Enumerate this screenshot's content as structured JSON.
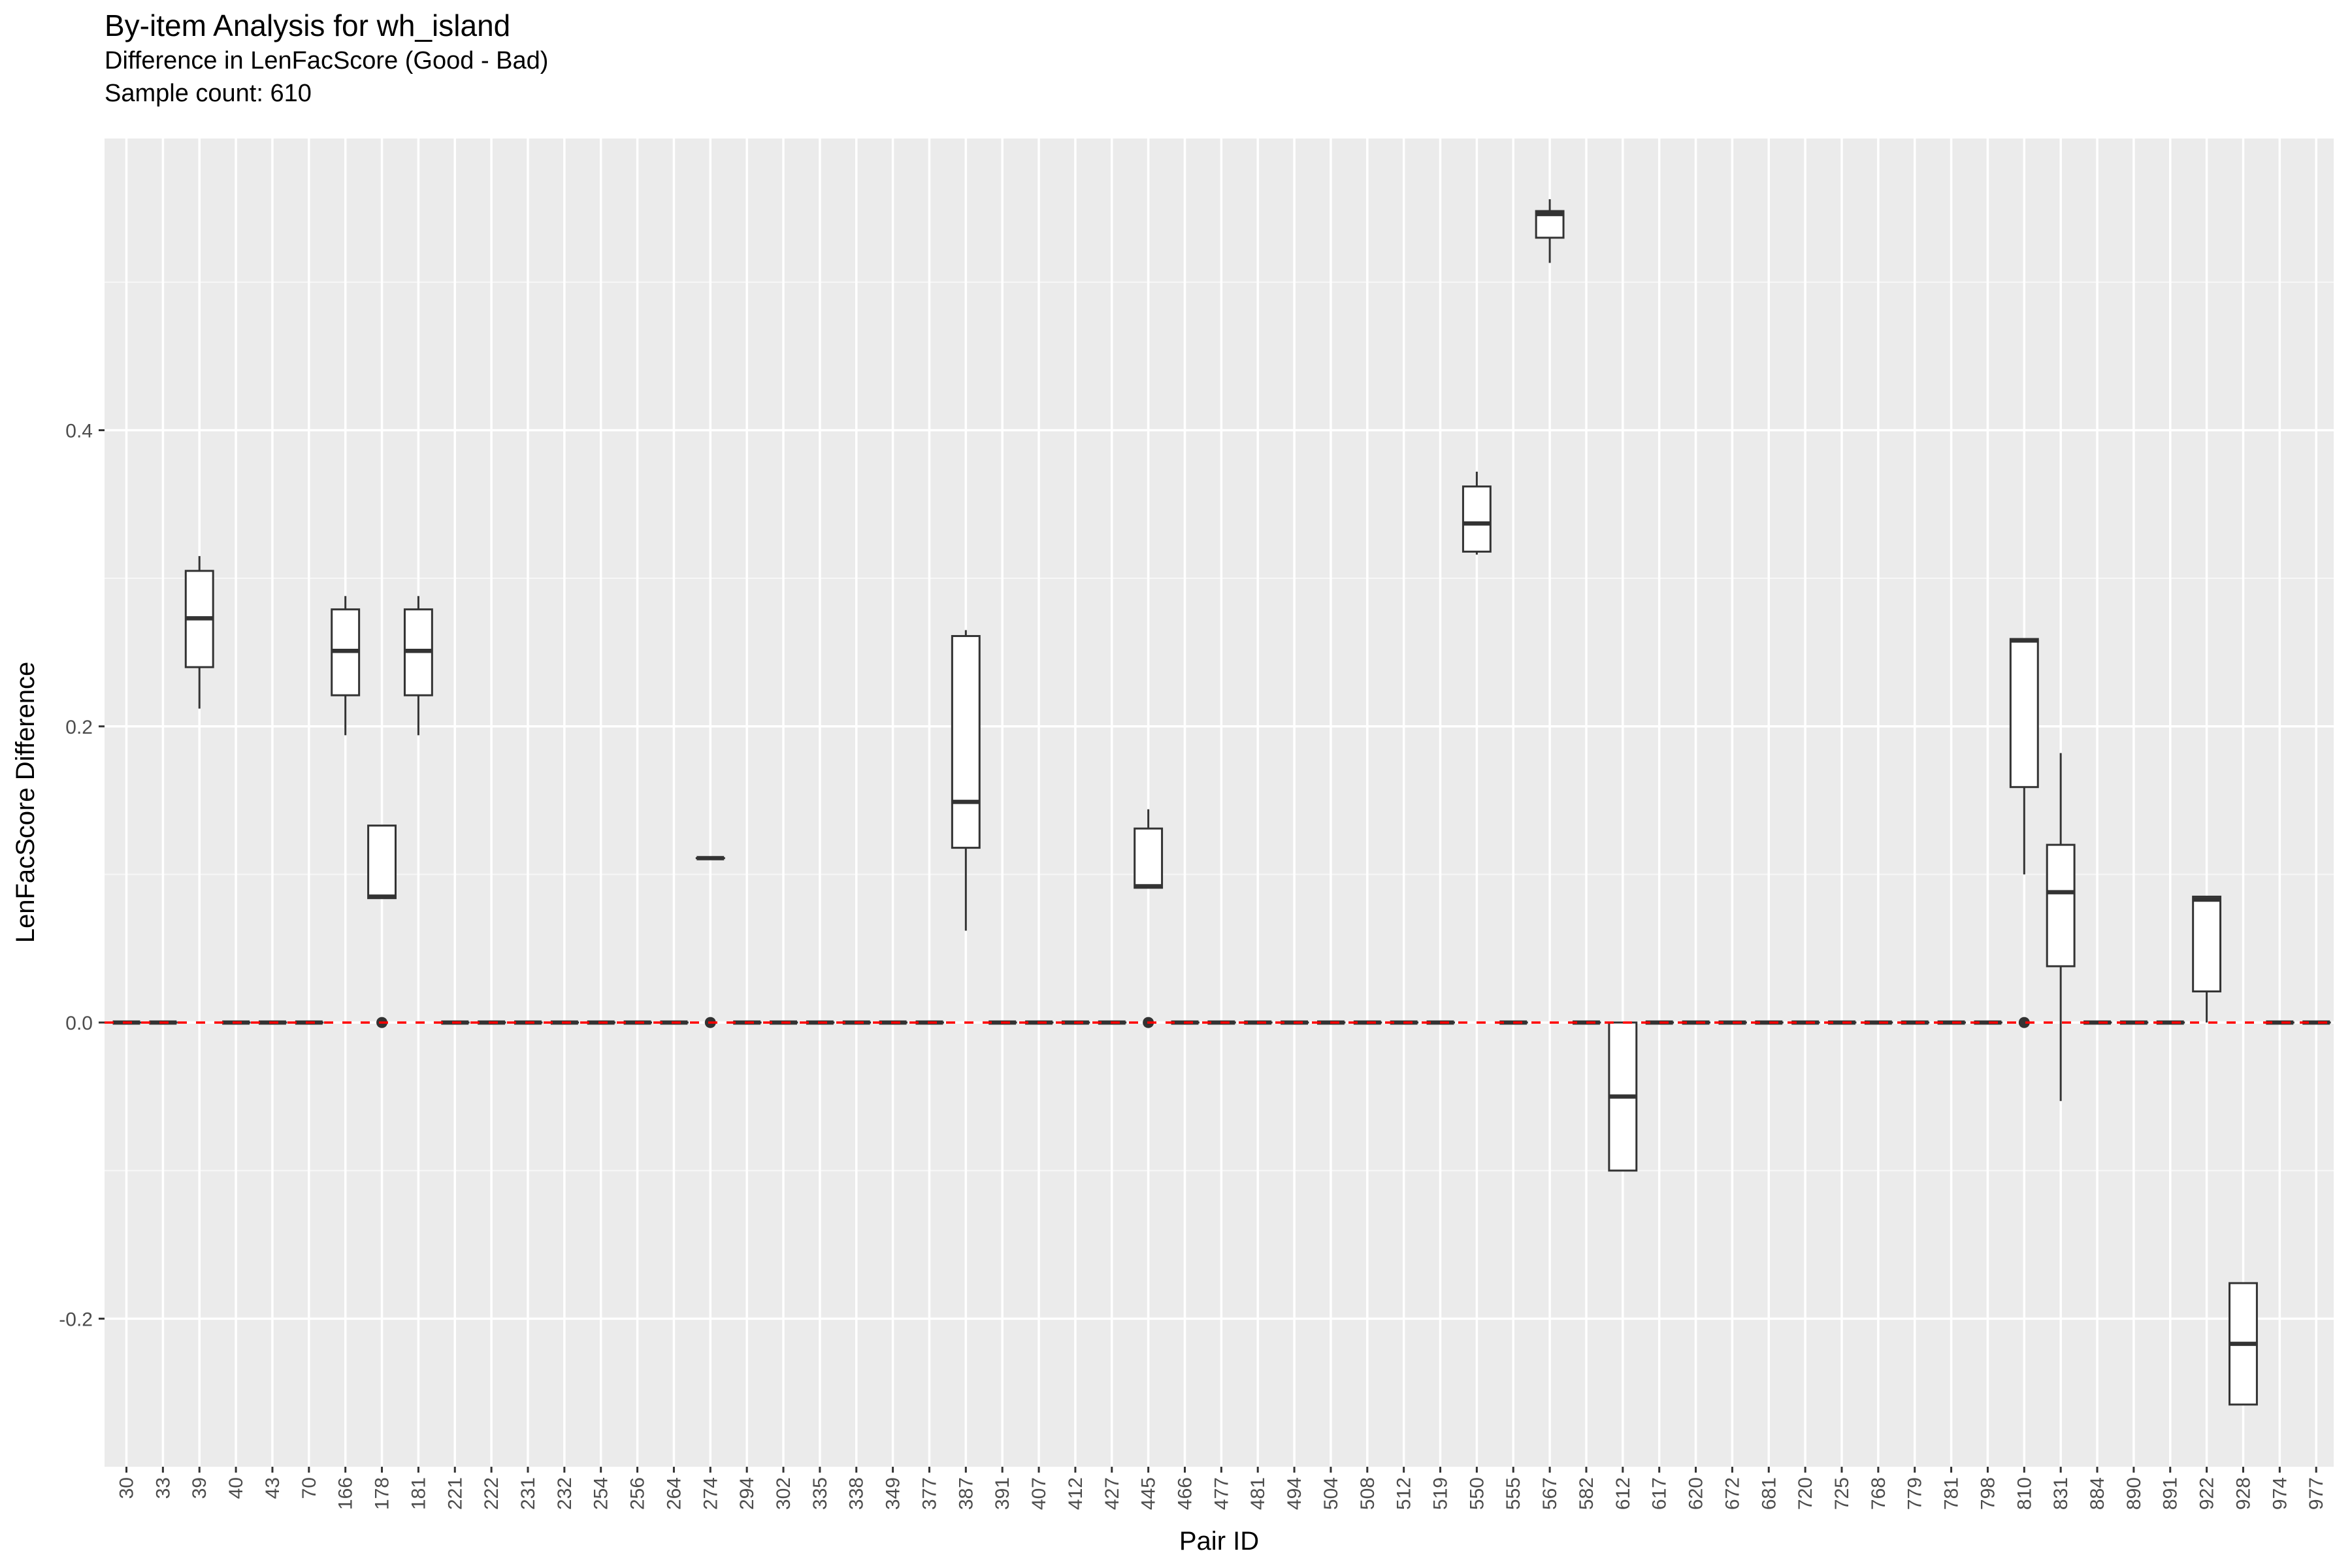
{
  "chart_data": {
    "type": "boxplot",
    "title": "By-item Analysis for wh_island",
    "subtitle": "Difference in LenFacScore (Good - Bad)",
    "caption": "Sample count: 610",
    "xlabel": "Pair ID",
    "ylabel": "LenFacScore Difference",
    "ylim": [
      -0.3,
      0.597
    ],
    "yticks": [
      -0.2,
      0.0,
      0.2,
      0.4
    ],
    "ytick_labels": [
      "-0.2",
      "0.0",
      "0.2",
      "0.4"
    ],
    "reference_line": {
      "y": 0.0,
      "color": "#ff0000",
      "style": "dashed"
    },
    "categories": [
      "30",
      "33",
      "39",
      "40",
      "43",
      "70",
      "166",
      "178",
      "181",
      "221",
      "222",
      "231",
      "232",
      "254",
      "256",
      "264",
      "274",
      "294",
      "302",
      "335",
      "338",
      "349",
      "377",
      "387",
      "391",
      "407",
      "412",
      "427",
      "445",
      "466",
      "477",
      "481",
      "494",
      "504",
      "508",
      "512",
      "519",
      "550",
      "555",
      "567",
      "582",
      "612",
      "617",
      "620",
      "672",
      "681",
      "720",
      "725",
      "768",
      "779",
      "781",
      "798",
      "810",
      "831",
      "884",
      "890",
      "891",
      "922",
      "928",
      "974",
      "977"
    ],
    "boxes": [
      {
        "id": "30",
        "min": 0,
        "q1": 0,
        "median": 0,
        "q3": 0,
        "max": 0,
        "outliers": []
      },
      {
        "id": "33",
        "min": 0,
        "q1": 0,
        "median": 0,
        "q3": 0,
        "max": 0,
        "outliers": []
      },
      {
        "id": "39",
        "min": 0.212,
        "q1": 0.24,
        "median": 0.273,
        "q3": 0.305,
        "max": 0.315,
        "outliers": []
      },
      {
        "id": "40",
        "min": 0,
        "q1": 0,
        "median": 0,
        "q3": 0,
        "max": 0,
        "outliers": []
      },
      {
        "id": "43",
        "min": 0,
        "q1": 0,
        "median": 0,
        "q3": 0,
        "max": 0,
        "outliers": []
      },
      {
        "id": "70",
        "min": 0,
        "q1": 0,
        "median": 0,
        "q3": 0,
        "max": 0,
        "outliers": []
      },
      {
        "id": "166",
        "min": 0.194,
        "q1": 0.221,
        "median": 0.251,
        "q3": 0.279,
        "max": 0.288,
        "outliers": []
      },
      {
        "id": "178",
        "min": 0.084,
        "q1": 0.084,
        "median": 0.085,
        "q3": 0.133,
        "max": 0.133,
        "outliers": [
          0
        ]
      },
      {
        "id": "181",
        "min": 0.194,
        "q1": 0.221,
        "median": 0.251,
        "q3": 0.279,
        "max": 0.288,
        "outliers": []
      },
      {
        "id": "221",
        "min": 0,
        "q1": 0,
        "median": 0,
        "q3": 0,
        "max": 0,
        "outliers": []
      },
      {
        "id": "222",
        "min": 0,
        "q1": 0,
        "median": 0,
        "q3": 0,
        "max": 0,
        "outliers": []
      },
      {
        "id": "231",
        "min": 0,
        "q1": 0,
        "median": 0,
        "q3": 0,
        "max": 0,
        "outliers": []
      },
      {
        "id": "232",
        "min": 0,
        "q1": 0,
        "median": 0,
        "q3": 0,
        "max": 0,
        "outliers": []
      },
      {
        "id": "254",
        "min": 0,
        "q1": 0,
        "median": 0,
        "q3": 0,
        "max": 0,
        "outliers": []
      },
      {
        "id": "256",
        "min": 0,
        "q1": 0,
        "median": 0,
        "q3": 0,
        "max": 0,
        "outliers": []
      },
      {
        "id": "264",
        "min": 0,
        "q1": 0,
        "median": 0,
        "q3": 0,
        "max": 0,
        "outliers": []
      },
      {
        "id": "274",
        "min": 0.111,
        "q1": 0.111,
        "median": 0.111,
        "q3": 0.111,
        "max": 0.111,
        "outliers": [
          0
        ]
      },
      {
        "id": "294",
        "min": 0,
        "q1": 0,
        "median": 0,
        "q3": 0,
        "max": 0,
        "outliers": []
      },
      {
        "id": "302",
        "min": 0,
        "q1": 0,
        "median": 0,
        "q3": 0,
        "max": 0,
        "outliers": []
      },
      {
        "id": "335",
        "min": 0,
        "q1": 0,
        "median": 0,
        "q3": 0,
        "max": 0,
        "outliers": []
      },
      {
        "id": "338",
        "min": 0,
        "q1": 0,
        "median": 0,
        "q3": 0,
        "max": 0,
        "outliers": []
      },
      {
        "id": "349",
        "min": 0,
        "q1": 0,
        "median": 0,
        "q3": 0,
        "max": 0,
        "outliers": []
      },
      {
        "id": "377",
        "min": 0,
        "q1": 0,
        "median": 0,
        "q3": 0,
        "max": 0,
        "outliers": []
      },
      {
        "id": "387",
        "min": 0.062,
        "q1": 0.118,
        "median": 0.149,
        "q3": 0.261,
        "max": 0.265,
        "outliers": []
      },
      {
        "id": "391",
        "min": 0,
        "q1": 0,
        "median": 0,
        "q3": 0,
        "max": 0,
        "outliers": []
      },
      {
        "id": "407",
        "min": 0,
        "q1": 0,
        "median": 0,
        "q3": 0,
        "max": 0,
        "outliers": []
      },
      {
        "id": "412",
        "min": 0,
        "q1": 0,
        "median": 0,
        "q3": 0,
        "max": 0,
        "outliers": []
      },
      {
        "id": "427",
        "min": 0,
        "q1": 0,
        "median": 0,
        "q3": 0,
        "max": 0,
        "outliers": []
      },
      {
        "id": "445",
        "min": 0.091,
        "q1": 0.091,
        "median": 0.092,
        "q3": 0.131,
        "max": 0.144,
        "outliers": [
          0
        ]
      },
      {
        "id": "466",
        "min": 0,
        "q1": 0,
        "median": 0,
        "q3": 0,
        "max": 0,
        "outliers": []
      },
      {
        "id": "477",
        "min": 0,
        "q1": 0,
        "median": 0,
        "q3": 0,
        "max": 0,
        "outliers": []
      },
      {
        "id": "481",
        "min": 0,
        "q1": 0,
        "median": 0,
        "q3": 0,
        "max": 0,
        "outliers": []
      },
      {
        "id": "494",
        "min": 0,
        "q1": 0,
        "median": 0,
        "q3": 0,
        "max": 0,
        "outliers": []
      },
      {
        "id": "504",
        "min": 0,
        "q1": 0,
        "median": 0,
        "q3": 0,
        "max": 0,
        "outliers": []
      },
      {
        "id": "508",
        "min": 0,
        "q1": 0,
        "median": 0,
        "q3": 0,
        "max": 0,
        "outliers": []
      },
      {
        "id": "512",
        "min": 0,
        "q1": 0,
        "median": 0,
        "q3": 0,
        "max": 0,
        "outliers": []
      },
      {
        "id": "519",
        "min": 0,
        "q1": 0,
        "median": 0,
        "q3": 0,
        "max": 0,
        "outliers": []
      },
      {
        "id": "550",
        "min": 0.316,
        "q1": 0.318,
        "median": 0.337,
        "q3": 0.362,
        "max": 0.372,
        "outliers": []
      },
      {
        "id": "555",
        "min": 0,
        "q1": 0,
        "median": 0,
        "q3": 0,
        "max": 0,
        "outliers": []
      },
      {
        "id": "567",
        "min": 0.513,
        "q1": 0.53,
        "median": 0.546,
        "q3": 0.548,
        "max": 0.556,
        "outliers": []
      },
      {
        "id": "582",
        "min": 0,
        "q1": 0,
        "median": 0,
        "q3": 0,
        "max": 0,
        "outliers": []
      },
      {
        "id": "612",
        "min": -0.1,
        "q1": -0.1,
        "median": -0.05,
        "q3": 0,
        "max": 0,
        "outliers": []
      },
      {
        "id": "617",
        "min": 0,
        "q1": 0,
        "median": 0,
        "q3": 0,
        "max": 0,
        "outliers": []
      },
      {
        "id": "620",
        "min": 0,
        "q1": 0,
        "median": 0,
        "q3": 0,
        "max": 0,
        "outliers": []
      },
      {
        "id": "672",
        "min": 0,
        "q1": 0,
        "median": 0,
        "q3": 0,
        "max": 0,
        "outliers": []
      },
      {
        "id": "681",
        "min": 0,
        "q1": 0,
        "median": 0,
        "q3": 0,
        "max": 0,
        "outliers": []
      },
      {
        "id": "720",
        "min": 0,
        "q1": 0,
        "median": 0,
        "q3": 0,
        "max": 0,
        "outliers": []
      },
      {
        "id": "725",
        "min": 0,
        "q1": 0,
        "median": 0,
        "q3": 0,
        "max": 0,
        "outliers": []
      },
      {
        "id": "768",
        "min": 0,
        "q1": 0,
        "median": 0,
        "q3": 0,
        "max": 0,
        "outliers": []
      },
      {
        "id": "779",
        "min": 0,
        "q1": 0,
        "median": 0,
        "q3": 0,
        "max": 0,
        "outliers": []
      },
      {
        "id": "781",
        "min": 0,
        "q1": 0,
        "median": 0,
        "q3": 0,
        "max": 0,
        "outliers": []
      },
      {
        "id": "798",
        "min": 0,
        "q1": 0,
        "median": 0,
        "q3": 0,
        "max": 0,
        "outliers": []
      },
      {
        "id": "810",
        "min": 0.1,
        "q1": 0.159,
        "median": 0.258,
        "q3": 0.259,
        "max": 0.259,
        "outliers": [
          0
        ]
      },
      {
        "id": "831",
        "min": -0.053,
        "q1": 0.038,
        "median": 0.088,
        "q3": 0.12,
        "max": 0.182,
        "outliers": []
      },
      {
        "id": "884",
        "min": 0,
        "q1": 0,
        "median": 0,
        "q3": 0,
        "max": 0,
        "outliers": []
      },
      {
        "id": "890",
        "min": 0,
        "q1": 0,
        "median": 0,
        "q3": 0,
        "max": 0,
        "outliers": []
      },
      {
        "id": "891",
        "min": 0,
        "q1": 0,
        "median": 0,
        "q3": 0,
        "max": 0,
        "outliers": []
      },
      {
        "id": "922",
        "min": 0,
        "q1": 0.021,
        "median": 0.083,
        "q3": 0.085,
        "max": 0.085,
        "outliers": []
      },
      {
        "id": "928",
        "min": -0.258,
        "q1": -0.258,
        "median": -0.217,
        "q3": -0.176,
        "max": -0.176,
        "outliers": []
      },
      {
        "id": "974",
        "min": 0,
        "q1": 0,
        "median": 0,
        "q3": 0,
        "max": 0,
        "outliers": []
      },
      {
        "id": "977",
        "min": 0,
        "q1": 0,
        "median": 0,
        "q3": 0,
        "max": 0,
        "outliers": []
      }
    ]
  }
}
